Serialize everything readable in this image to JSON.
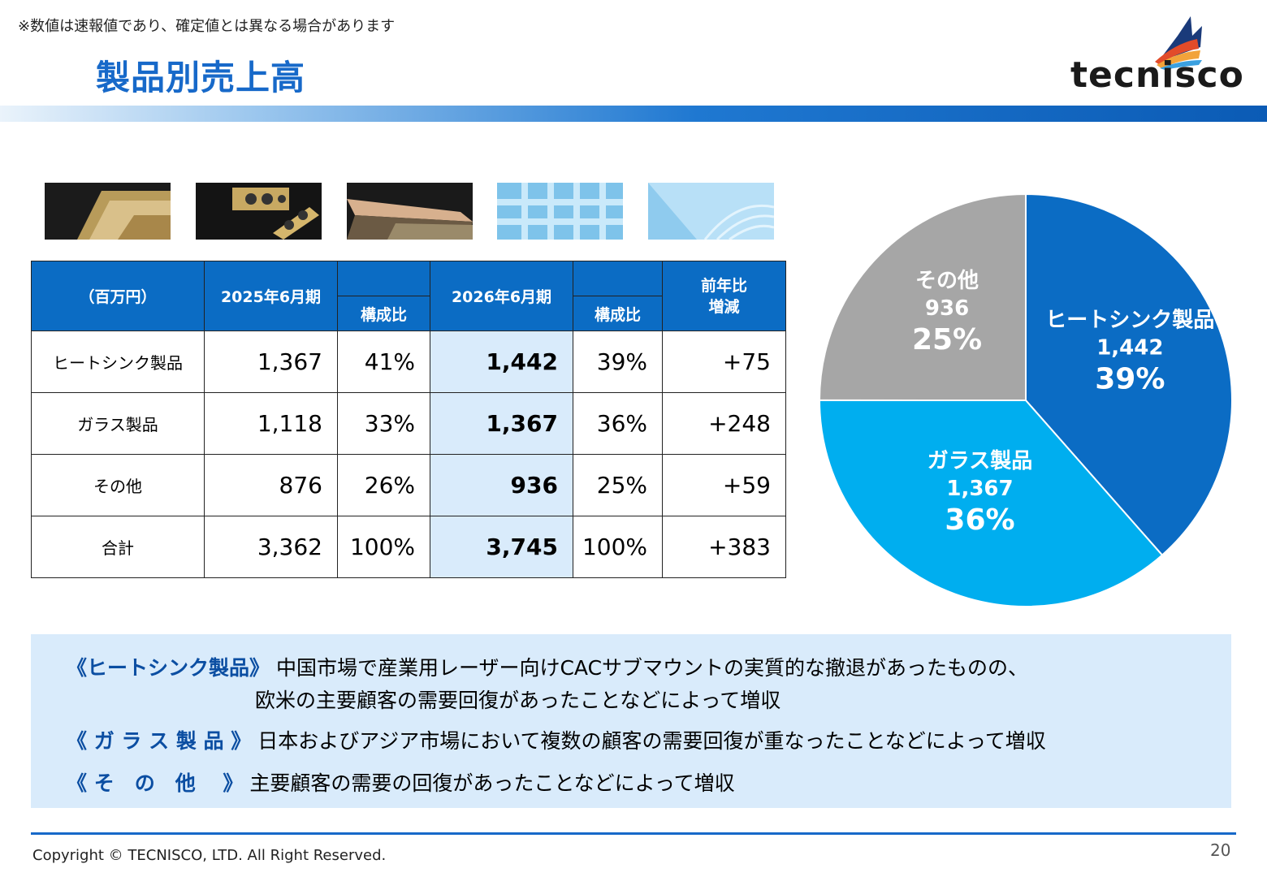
{
  "note": "※数値は速報値であり、確定値とは異なる場合があります",
  "title": "製品別売上高",
  "logo_text": "tecnisco",
  "table": {
    "header": {
      "unit": "（百万円）",
      "fy2025": "2025年6月期",
      "fy2026": "2026年6月期",
      "ratio": "構成比",
      "yoy": "前年比\n増減"
    },
    "rows": [
      {
        "label": "ヒートシンク製品",
        "fy2025": "1,367",
        "ratio2025": "41%",
        "fy2026": "1,442",
        "ratio2026": "39%",
        "yoy": "+75"
      },
      {
        "label": "ガラス製品",
        "fy2025": "1,118",
        "ratio2025": "33%",
        "fy2026": "1,367",
        "ratio2026": "36%",
        "yoy": "+248"
      },
      {
        "label": "その他",
        "fy2025": "876",
        "ratio2025": "26%",
        "fy2026": "936",
        "ratio2026": "25%",
        "yoy": "+59"
      },
      {
        "label": "合計",
        "fy2025": "3,362",
        "ratio2025": "100%",
        "fy2026": "3,745",
        "ratio2026": "100%",
        "yoy": "+383"
      }
    ]
  },
  "chart_data": {
    "type": "pie",
    "title": "",
    "slices": [
      {
        "label": "ヒートシンク製品",
        "value": 1442,
        "value_label": "1,442",
        "percent_label": "39%",
        "color": "#0b6cc4"
      },
      {
        "label": "ガラス製品",
        "value": 1367,
        "value_label": "1,367",
        "percent_label": "36%",
        "color": "#00aeef"
      },
      {
        "label": "その他",
        "value": 936,
        "value_label": "936",
        "percent_label": "25%",
        "color": "#a6a6a6"
      }
    ],
    "start": "12 o'clock, clockwise"
  },
  "summary": [
    {
      "category": "《ヒートシンク製品》",
      "lines": [
        "中国市場で産業用レーザー向けCACサブマウントの実質的な撤退があったものの、",
        "欧米の主要顧客の需要回復があったことなどによって増収"
      ]
    },
    {
      "category": "《 ガ ラ ス 製 品 》",
      "lines": [
        "日本およびアジア市場において複数の顧客の需要回復が重なったことなどによって増収"
      ]
    },
    {
      "category": "《 そ　の　他 　》",
      "lines": [
        "主要顧客の需要の回復があったことなどによって増収"
      ]
    }
  ],
  "footer": {
    "copyright": "Copyright © TECNISCO, LTD. All Right Reserved.",
    "page": "20"
  },
  "colors": {
    "accent": "#1769c9",
    "table_header": "#0b6cc4",
    "highlight": "#d9ebfb"
  }
}
